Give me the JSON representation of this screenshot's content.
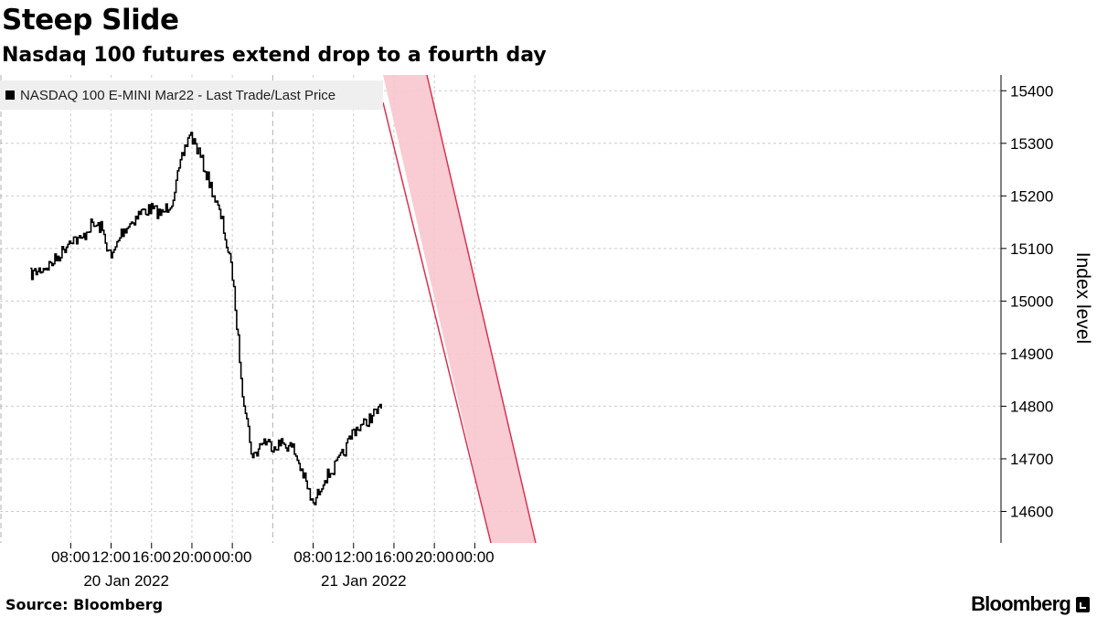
{
  "chart_data": {
    "type": "line",
    "title": "Steep Slide",
    "subtitle": "Nasdaq 100 futures extend drop to a fourth day",
    "series": [
      {
        "name": "NASDAQ 100 E-MINI Mar22 - Last Trade/Last Price",
        "x": [
          "2022-01-20 04:00",
          "2022-01-20 05:00",
          "2022-01-20 06:00",
          "2022-01-20 07:00",
          "2022-01-20 08:00",
          "2022-01-20 09:00",
          "2022-01-20 10:00",
          "2022-01-20 11:00",
          "2022-01-20 12:00",
          "2022-01-20 13:00",
          "2022-01-20 14:00",
          "2022-01-20 15:00",
          "2022-01-20 16:00",
          "2022-01-20 17:00",
          "2022-01-20 18:00",
          "2022-01-20 19:00",
          "2022-01-20 19:45",
          "2022-01-20 20:30",
          "2022-01-20 21:00",
          "2022-01-20 22:00",
          "2022-01-20 23:00",
          "2022-01-21 00:00",
          "2022-01-21 01:00",
          "2022-01-21 02:00",
          "2022-01-21 03:00",
          "2022-01-21 04:00",
          "2022-01-21 05:00",
          "2022-01-21 06:00",
          "2022-01-21 07:00",
          "2022-01-21 08:00",
          "2022-01-21 09:00",
          "2022-01-21 10:00",
          "2022-01-21 11:00",
          "2022-01-21 12:00",
          "2022-01-21 13:00",
          "2022-01-21 14:00",
          "2022-01-21 14:45"
        ],
        "values": [
          15050,
          15060,
          15070,
          15090,
          15120,
          15115,
          15145,
          15140,
          15080,
          15130,
          15150,
          15170,
          15175,
          15165,
          15190,
          15270,
          15320,
          15290,
          15265,
          15210,
          15150,
          15050,
          14830,
          14700,
          14735,
          14725,
          14730,
          14720,
          14670,
          14610,
          14660,
          14680,
          14710,
          14755,
          14765,
          14785,
          14795
        ]
      }
    ],
    "x_tick_labels": [
      "08:00",
      "12:00",
      "16:00",
      "20:00",
      "00:00",
      "08:00",
      "12:00",
      "16:00",
      "20:00",
      "00:00"
    ],
    "x_date_labels": [
      "20 Jan 2022",
      "21 Jan 2022"
    ],
    "y_ticks": [
      14600,
      14700,
      14800,
      14900,
      15000,
      15100,
      15200,
      15300,
      15400
    ],
    "ylim": [
      14540,
      15430
    ],
    "ylabel": "Index level",
    "grid": true,
    "legend_position": "top-left",
    "annotation": "downtrend channel (shaded red band)",
    "colors": {
      "line": "#000000",
      "channel_fill": "#f8c6cf",
      "channel_edge": "#d9334f",
      "grid": "#cccccc"
    }
  },
  "footer": {
    "source": "Source: Bloomberg",
    "brand": "Bloomberg"
  }
}
